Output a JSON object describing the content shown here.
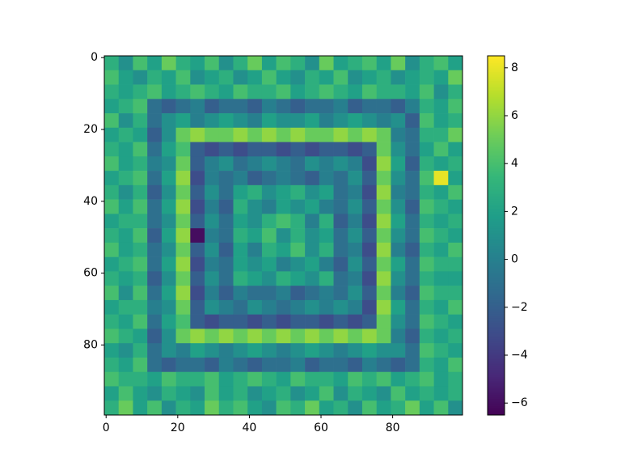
{
  "chart_data": {
    "type": "heatmap",
    "cmap": "viridis",
    "x": [
      1.5,
      5.5,
      9.5,
      13.5,
      17.5,
      21.5,
      25.5,
      29.5,
      33.5,
      37.5,
      41.5,
      45.5,
      49.5,
      53.5,
      57.5,
      61.5,
      65.5,
      69.5,
      73.5,
      77.5,
      81.5,
      85.5,
      89.5,
      93.5,
      97.5
    ],
    "y": [
      1.5,
      5.5,
      9.5,
      13.5,
      17.5,
      21.5,
      25.5,
      29.5,
      33.5,
      37.5,
      41.5,
      45.5,
      49.5,
      53.5,
      57.5,
      61.5,
      65.5,
      69.5,
      73.5,
      77.5,
      81.5,
      85.5,
      89.5,
      93.5,
      97.5
    ],
    "z": [
      [
        3,
        1,
        4,
        2,
        5,
        3,
        2,
        4,
        1,
        3,
        5,
        2,
        4,
        3,
        1,
        5,
        2,
        3,
        4,
        2,
        5,
        1,
        3,
        4,
        2
      ],
      [
        4,
        2,
        1,
        3,
        2,
        4,
        1,
        2,
        3,
        1,
        2,
        4,
        2,
        1,
        3,
        2,
        4,
        1,
        2,
        3,
        1,
        2,
        3,
        2,
        5
      ],
      [
        3,
        2,
        3,
        4,
        2,
        3,
        4,
        3,
        2,
        4,
        3,
        3,
        4,
        2,
        3,
        4,
        3,
        2,
        4,
        3,
        3,
        2,
        4,
        1,
        3
      ],
      [
        2,
        3,
        4,
        -1,
        -2,
        -1,
        0,
        -2,
        -1,
        -1,
        -2,
        0,
        -1,
        -2,
        -1,
        -1,
        0,
        -2,
        -1,
        -1,
        -2,
        0,
        3,
        2,
        4
      ],
      [
        4,
        1,
        3,
        -1,
        1,
        2,
        0,
        1,
        2,
        1,
        0,
        2,
        1,
        1,
        2,
        0,
        1,
        2,
        1,
        0,
        1,
        -2,
        4,
        2,
        3
      ],
      [
        2,
        3,
        2,
        -2,
        1,
        5,
        6,
        5,
        5,
        6,
        5,
        6,
        5,
        6,
        5,
        5,
        6,
        5,
        6,
        5,
        0,
        -1,
        3,
        3,
        5
      ],
      [
        3,
        2,
        4,
        -1,
        2,
        4,
        -2,
        -3,
        -2,
        -3,
        -2,
        -2,
        -3,
        -2,
        -3,
        -2,
        -2,
        -3,
        -2,
        5,
        1,
        -1,
        2,
        4,
        2
      ],
      [
        4,
        2,
        3,
        0,
        1,
        5,
        -2,
        0,
        1,
        -1,
        0,
        1,
        0,
        -1,
        1,
        0,
        1,
        0,
        -3,
        6,
        2,
        -2,
        3,
        2,
        3
      ],
      [
        2,
        3,
        4,
        -1,
        2,
        6,
        -3,
        0,
        -1,
        0,
        -2,
        -1,
        0,
        -1,
        -2,
        0,
        -1,
        1,
        -2,
        5,
        1,
        -1,
        4,
        8,
        2
      ],
      [
        3,
        1,
        3,
        -2,
        1,
        5,
        -2,
        1,
        -1,
        2,
        3,
        1,
        2,
        3,
        1,
        2,
        -1,
        0,
        -3,
        6,
        0,
        -1,
        3,
        2,
        4
      ],
      [
        4,
        2,
        4,
        -1,
        2,
        6,
        -3,
        0,
        -2,
        3,
        1,
        0,
        2,
        1,
        2,
        0,
        -1,
        1,
        -2,
        5,
        1,
        -2,
        4,
        3,
        2
      ],
      [
        2,
        3,
        3,
        -1,
        1,
        5,
        -2,
        1,
        -1,
        2,
        1,
        3,
        4,
        3,
        0,
        3,
        -2,
        0,
        -3,
        6,
        2,
        -1,
        3,
        2,
        3
      ],
      [
        3,
        2,
        4,
        -2,
        2,
        6,
        -6,
        0,
        -1,
        3,
        2,
        4,
        1,
        3,
        1,
        2,
        -1,
        1,
        -2,
        5,
        1,
        -1,
        4,
        3,
        2
      ],
      [
        4,
        2,
        3,
        -1,
        1,
        5,
        -2,
        1,
        -2,
        2,
        0,
        3,
        2,
        4,
        1,
        3,
        -1,
        0,
        -3,
        6,
        0,
        -2,
        3,
        2,
        4
      ],
      [
        2,
        3,
        4,
        -1,
        2,
        6,
        -3,
        0,
        -1,
        2,
        1,
        2,
        0,
        1,
        2,
        0,
        -2,
        1,
        -2,
        5,
        2,
        -1,
        4,
        3,
        3
      ],
      [
        3,
        2,
        3,
        -2,
        1,
        5,
        -2,
        1,
        -1,
        3,
        2,
        1,
        3,
        2,
        1,
        3,
        -1,
        0,
        -3,
        6,
        1,
        -1,
        3,
        2,
        2
      ],
      [
        4,
        1,
        4,
        -1,
        2,
        6,
        -3,
        0,
        -2,
        0,
        -1,
        -1,
        0,
        -2,
        -1,
        0,
        -1,
        1,
        -2,
        5,
        0,
        -2,
        4,
        3,
        3
      ],
      [
        2,
        3,
        3,
        0,
        1,
        5,
        -2,
        1,
        0,
        -1,
        1,
        0,
        -1,
        0,
        1,
        0,
        1,
        0,
        -3,
        6,
        2,
        -1,
        3,
        2,
        4
      ],
      [
        3,
        2,
        4,
        -1,
        2,
        4,
        -2,
        -3,
        -2,
        -2,
        -3,
        -2,
        -3,
        -2,
        -2,
        -3,
        -2,
        -3,
        -2,
        5,
        1,
        -1,
        4,
        3,
        2
      ],
      [
        4,
        3,
        2,
        -2,
        1,
        5,
        6,
        5,
        6,
        5,
        6,
        5,
        6,
        5,
        6,
        5,
        6,
        5,
        6,
        5,
        0,
        -2,
        3,
        2,
        3
      ],
      [
        2,
        1,
        3,
        -1,
        1,
        0,
        2,
        1,
        0,
        1,
        2,
        1,
        0,
        1,
        2,
        1,
        0,
        1,
        2,
        1,
        1,
        -1,
        4,
        3,
        2
      ],
      [
        3,
        2,
        4,
        -1,
        -2,
        -1,
        -1,
        -2,
        0,
        -1,
        -2,
        -1,
        -1,
        0,
        -2,
        -1,
        -1,
        -2,
        0,
        -1,
        -2,
        -1,
        3,
        2,
        4
      ],
      [
        4,
        3,
        3,
        2,
        4,
        3,
        3,
        4,
        2,
        3,
        4,
        3,
        2,
        4,
        3,
        3,
        2,
        4,
        3,
        4,
        2,
        3,
        4,
        2,
        3
      ],
      [
        2,
        4,
        2,
        1,
        3,
        2,
        1,
        4,
        2,
        3,
        1,
        2,
        3,
        1,
        2,
        4,
        1,
        3,
        2,
        1,
        4,
        2,
        3,
        2,
        3
      ],
      [
        3,
        5,
        2,
        4,
        1,
        3,
        2,
        5,
        3,
        4,
        2,
        1,
        4,
        3,
        5,
        2,
        3,
        1,
        4,
        2,
        3,
        5,
        2,
        4,
        1
      ]
    ],
    "xlim": [
      -0.5,
      99.5
    ],
    "ylim": [
      99.5,
      -0.5
    ],
    "xticks": [
      0,
      20,
      40,
      60,
      80
    ],
    "yticks": [
      0,
      20,
      40,
      60,
      80
    ],
    "clim": [
      -6.5,
      8.5
    ],
    "cticks": [
      {
        "value": -6,
        "label": "−6"
      },
      {
        "value": -4,
        "label": "−4"
      },
      {
        "value": -2,
        "label": "−2"
      },
      0,
      2,
      4,
      6,
      8
    ]
  }
}
